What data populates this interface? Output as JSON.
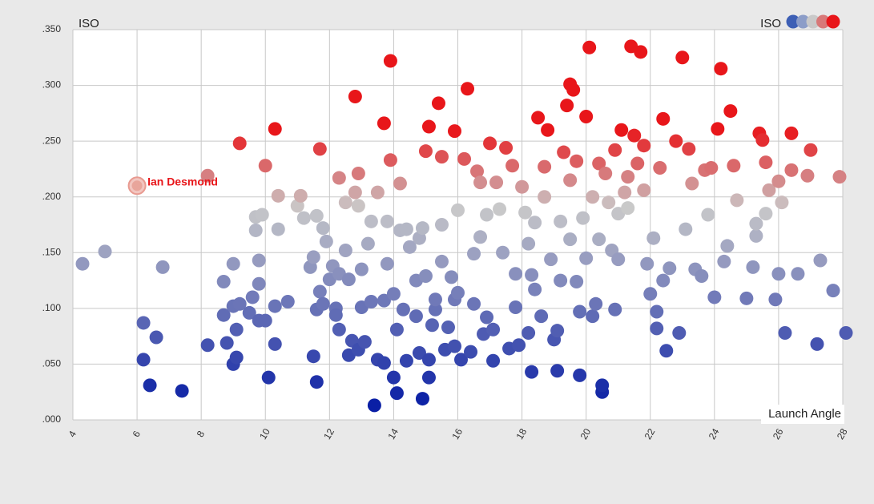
{
  "chart_data": {
    "type": "scatter",
    "xlabel": "Launch Angle",
    "ylabel": "ISO",
    "legend_label": "ISO",
    "legend_placement": "top-right",
    "xlim": [
      4,
      28
    ],
    "ylim": [
      0,
      0.35
    ],
    "grid": true,
    "x_ticks": [
      4,
      6,
      8,
      10,
      12,
      14,
      16,
      18,
      20,
      22,
      24,
      26,
      28
    ],
    "y_ticks": [
      0,
      0.05,
      0.1,
      0.15,
      0.2,
      0.25,
      0.3,
      0.35
    ],
    "y_tick_labels": [
      ".000",
      ".050",
      ".100",
      ".150",
      ".200",
      ".250",
      ".300",
      ".350"
    ],
    "color_scale": [
      "#0a1fa5",
      "#c9c9c9",
      "#e8161a"
    ],
    "legend_colors": [
      "#3d5fb5",
      "#8c9dc8",
      "#c9c9c9",
      "#d87878",
      "#e8161a"
    ],
    "highlight": {
      "label": "Ian Desmond",
      "x": 6.0,
      "y": 0.21,
      "color": "#e8161a"
    },
    "points": [
      [
        4.3,
        0.14
      ],
      [
        5.0,
        0.151
      ],
      [
        6.2,
        0.087
      ],
      [
        6.2,
        0.054
      ],
      [
        6.4,
        0.031
      ],
      [
        6.6,
        0.074
      ],
      [
        6.8,
        0.137
      ],
      [
        7.4,
        0.026
      ],
      [
        8.2,
        0.067
      ],
      [
        8.2,
        0.219
      ],
      [
        8.7,
        0.124
      ],
      [
        8.7,
        0.094
      ],
      [
        8.8,
        0.069
      ],
      [
        9.0,
        0.14
      ],
      [
        9.0,
        0.102
      ],
      [
        9.0,
        0.05
      ],
      [
        9.1,
        0.056
      ],
      [
        9.1,
        0.081
      ],
      [
        9.2,
        0.104
      ],
      [
        9.2,
        0.248
      ],
      [
        9.5,
        0.096
      ],
      [
        9.6,
        0.11
      ],
      [
        9.7,
        0.182
      ],
      [
        9.7,
        0.17
      ],
      [
        9.8,
        0.122
      ],
      [
        9.8,
        0.089
      ],
      [
        9.8,
        0.143
      ],
      [
        9.9,
        0.184
      ],
      [
        10.0,
        0.089
      ],
      [
        10.0,
        0.228
      ],
      [
        10.1,
        0.038
      ],
      [
        10.3,
        0.102
      ],
      [
        10.3,
        0.068
      ],
      [
        10.3,
        0.261
      ],
      [
        10.4,
        0.201
      ],
      [
        10.4,
        0.171
      ],
      [
        10.7,
        0.106
      ],
      [
        11.0,
        0.192
      ],
      [
        11.1,
        0.201
      ],
      [
        11.2,
        0.181
      ],
      [
        11.4,
        0.137
      ],
      [
        11.5,
        0.146
      ],
      [
        11.5,
        0.057
      ],
      [
        11.6,
        0.034
      ],
      [
        11.6,
        0.099
      ],
      [
        11.6,
        0.183
      ],
      [
        11.7,
        0.243
      ],
      [
        11.7,
        0.115
      ],
      [
        11.8,
        0.104
      ],
      [
        11.8,
        0.172
      ],
      [
        11.9,
        0.16
      ],
      [
        12.0,
        0.126
      ],
      [
        12.1,
        0.138
      ],
      [
        12.2,
        0.1
      ],
      [
        12.2,
        0.094
      ],
      [
        12.3,
        0.081
      ],
      [
        12.3,
        0.131
      ],
      [
        12.3,
        0.217
      ],
      [
        12.5,
        0.195
      ],
      [
        12.5,
        0.152
      ],
      [
        12.6,
        0.126
      ],
      [
        12.6,
        0.058
      ],
      [
        12.7,
        0.071
      ],
      [
        12.8,
        0.204
      ],
      [
        12.8,
        0.29
      ],
      [
        12.9,
        0.221
      ],
      [
        12.9,
        0.192
      ],
      [
        12.9,
        0.063
      ],
      [
        13.0,
        0.101
      ],
      [
        13.0,
        0.135
      ],
      [
        13.1,
        0.07
      ],
      [
        13.2,
        0.158
      ],
      [
        13.3,
        0.178
      ],
      [
        13.3,
        0.106
      ],
      [
        13.4,
        0.013
      ],
      [
        13.5,
        0.204
      ],
      [
        13.5,
        0.054
      ],
      [
        13.7,
        0.107
      ],
      [
        13.7,
        0.051
      ],
      [
        13.7,
        0.266
      ],
      [
        13.8,
        0.178
      ],
      [
        13.8,
        0.14
      ],
      [
        13.9,
        0.322
      ],
      [
        13.9,
        0.233
      ],
      [
        14.0,
        0.038
      ],
      [
        14.0,
        0.113
      ],
      [
        14.1,
        0.024
      ],
      [
        14.1,
        0.081
      ],
      [
        14.2,
        0.212
      ],
      [
        14.2,
        0.17
      ],
      [
        14.3,
        0.099
      ],
      [
        14.4,
        0.171
      ],
      [
        14.4,
        0.053
      ],
      [
        14.5,
        0.155
      ],
      [
        14.7,
        0.125
      ],
      [
        14.7,
        0.093
      ],
      [
        14.8,
        0.06
      ],
      [
        14.8,
        0.163
      ],
      [
        14.9,
        0.019
      ],
      [
        14.9,
        0.172
      ],
      [
        15.0,
        0.129
      ],
      [
        15.0,
        0.241
      ],
      [
        15.1,
        0.263
      ],
      [
        15.1,
        0.054
      ],
      [
        15.1,
        0.038
      ],
      [
        15.2,
        0.085
      ],
      [
        15.3,
        0.099
      ],
      [
        15.3,
        0.108
      ],
      [
        15.4,
        0.284
      ],
      [
        15.5,
        0.236
      ],
      [
        15.5,
        0.175
      ],
      [
        15.5,
        0.142
      ],
      [
        15.6,
        0.063
      ],
      [
        15.7,
        0.083
      ],
      [
        15.8,
        0.128
      ],
      [
        15.9,
        0.066
      ],
      [
        15.9,
        0.108
      ],
      [
        15.9,
        0.259
      ],
      [
        16.0,
        0.188
      ],
      [
        16.0,
        0.114
      ],
      [
        16.1,
        0.054
      ],
      [
        16.2,
        0.234
      ],
      [
        16.3,
        0.297
      ],
      [
        16.4,
        0.061
      ],
      [
        16.5,
        0.104
      ],
      [
        16.5,
        0.149
      ],
      [
        16.6,
        0.223
      ],
      [
        16.7,
        0.213
      ],
      [
        16.7,
        0.164
      ],
      [
        16.8,
        0.077
      ],
      [
        16.9,
        0.092
      ],
      [
        16.9,
        0.184
      ],
      [
        17.0,
        0.248
      ],
      [
        17.1,
        0.053
      ],
      [
        17.1,
        0.081
      ],
      [
        17.2,
        0.213
      ],
      [
        17.3,
        0.189
      ],
      [
        17.4,
        0.15
      ],
      [
        17.5,
        0.244
      ],
      [
        17.6,
        0.064
      ],
      [
        17.7,
        0.228
      ],
      [
        17.8,
        0.131
      ],
      [
        17.8,
        0.101
      ],
      [
        17.9,
        0.067
      ],
      [
        18.0,
        0.209
      ],
      [
        18.1,
        0.186
      ],
      [
        18.2,
        0.078
      ],
      [
        18.2,
        0.158
      ],
      [
        18.3,
        0.13
      ],
      [
        18.3,
        0.043
      ],
      [
        18.4,
        0.117
      ],
      [
        18.4,
        0.177
      ],
      [
        18.5,
        0.271
      ],
      [
        18.6,
        0.093
      ],
      [
        18.7,
        0.227
      ],
      [
        18.7,
        0.2
      ],
      [
        18.8,
        0.26
      ],
      [
        18.9,
        0.144
      ],
      [
        19.0,
        0.072
      ],
      [
        19.1,
        0.08
      ],
      [
        19.1,
        0.044
      ],
      [
        19.2,
        0.125
      ],
      [
        19.2,
        0.178
      ],
      [
        19.3,
        0.24
      ],
      [
        19.4,
        0.282
      ],
      [
        19.5,
        0.301
      ],
      [
        19.5,
        0.215
      ],
      [
        19.5,
        0.162
      ],
      [
        19.6,
        0.296
      ],
      [
        19.7,
        0.232
      ],
      [
        19.7,
        0.124
      ],
      [
        19.8,
        0.04
      ],
      [
        19.8,
        0.097
      ],
      [
        19.9,
        0.181
      ],
      [
        20.0,
        0.272
      ],
      [
        20.0,
        0.145
      ],
      [
        20.1,
        0.334
      ],
      [
        20.2,
        0.2
      ],
      [
        20.2,
        0.093
      ],
      [
        20.3,
        0.104
      ],
      [
        20.4,
        0.162
      ],
      [
        20.4,
        0.23
      ],
      [
        20.5,
        0.025
      ],
      [
        20.5,
        0.031
      ],
      [
        20.6,
        0.221
      ],
      [
        20.7,
        0.195
      ],
      [
        20.8,
        0.152
      ],
      [
        20.9,
        0.242
      ],
      [
        20.9,
        0.099
      ],
      [
        21.0,
        0.144
      ],
      [
        21.0,
        0.185
      ],
      [
        21.1,
        0.26
      ],
      [
        21.2,
        0.204
      ],
      [
        21.3,
        0.19
      ],
      [
        21.3,
        0.218
      ],
      [
        21.4,
        0.335
      ],
      [
        21.5,
        0.255
      ],
      [
        21.6,
        0.23
      ],
      [
        21.7,
        0.33
      ],
      [
        21.8,
        0.246
      ],
      [
        21.8,
        0.206
      ],
      [
        21.9,
        0.14
      ],
      [
        22.0,
        0.113
      ],
      [
        22.1,
        0.163
      ],
      [
        22.2,
        0.082
      ],
      [
        22.2,
        0.097
      ],
      [
        22.3,
        0.226
      ],
      [
        22.4,
        0.27
      ],
      [
        22.4,
        0.125
      ],
      [
        22.5,
        0.062
      ],
      [
        22.6,
        0.136
      ],
      [
        22.8,
        0.25
      ],
      [
        22.9,
        0.078
      ],
      [
        23.0,
        0.325
      ],
      [
        23.1,
        0.171
      ],
      [
        23.2,
        0.243
      ],
      [
        23.3,
        0.212
      ],
      [
        23.4,
        0.135
      ],
      [
        23.6,
        0.129
      ],
      [
        23.7,
        0.224
      ],
      [
        23.8,
        0.184
      ],
      [
        23.9,
        0.226
      ],
      [
        24.0,
        0.11
      ],
      [
        24.1,
        0.261
      ],
      [
        24.2,
        0.315
      ],
      [
        24.3,
        0.142
      ],
      [
        24.4,
        0.156
      ],
      [
        24.5,
        0.277
      ],
      [
        24.6,
        0.228
      ],
      [
        24.7,
        0.197
      ],
      [
        25.0,
        0.109
      ],
      [
        25.2,
        0.137
      ],
      [
        25.3,
        0.165
      ],
      [
        25.3,
        0.176
      ],
      [
        25.4,
        0.257
      ],
      [
        25.5,
        0.251
      ],
      [
        25.6,
        0.185
      ],
      [
        25.6,
        0.231
      ],
      [
        25.7,
        0.206
      ],
      [
        25.9,
        0.108
      ],
      [
        26.0,
        0.214
      ],
      [
        26.0,
        0.131
      ],
      [
        26.1,
        0.195
      ],
      [
        26.2,
        0.078
      ],
      [
        26.4,
        0.257
      ],
      [
        26.4,
        0.224
      ],
      [
        26.6,
        0.131
      ],
      [
        26.9,
        0.219
      ],
      [
        27.0,
        0.242
      ],
      [
        27.2,
        0.068
      ],
      [
        27.3,
        0.143
      ],
      [
        27.7,
        0.116
      ],
      [
        27.9,
        0.218
      ],
      [
        28.1,
        0.078
      ]
    ]
  }
}
